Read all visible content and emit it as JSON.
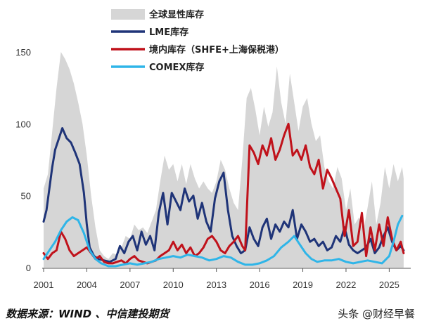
{
  "chart_data": {
    "type": "line",
    "title": "",
    "xlabel": "",
    "ylabel": "",
    "xlim": [
      2001,
      2026.3
    ],
    "ylim": [
      0,
      150
    ],
    "yticks": [
      "0",
      "50",
      "100",
      "150"
    ],
    "xticks": [
      "2001",
      "2004",
      "2007",
      "2010",
      "2013",
      "2016",
      "2019",
      "2022",
      "2025"
    ],
    "legend_position": "top-center",
    "grid": false,
    "series": [
      {
        "name": "全球显性库存",
        "style": "area",
        "color": "#d6d6d6",
        "points": [
          [
            2001.0,
            55
          ],
          [
            2001.3,
            65
          ],
          [
            2001.6,
            95
          ],
          [
            2001.9,
            125
          ],
          [
            2002.2,
            150
          ],
          [
            2002.5,
            145
          ],
          [
            2002.8,
            138
          ],
          [
            2003.1,
            128
          ],
          [
            2003.4,
            115
          ],
          [
            2003.7,
            100
          ],
          [
            2004.0,
            78
          ],
          [
            2004.3,
            50
          ],
          [
            2004.6,
            28
          ],
          [
            2004.9,
            12
          ],
          [
            2005.2,
            8
          ],
          [
            2005.5,
            6
          ],
          [
            2005.8,
            10
          ],
          [
            2006.1,
            9
          ],
          [
            2006.4,
            14
          ],
          [
            2006.7,
            22
          ],
          [
            2007.0,
            20
          ],
          [
            2007.3,
            30
          ],
          [
            2007.6,
            26
          ],
          [
            2007.9,
            28
          ],
          [
            2008.2,
            24
          ],
          [
            2008.5,
            32
          ],
          [
            2008.8,
            40
          ],
          [
            2009.1,
            60
          ],
          [
            2009.4,
            78
          ],
          [
            2009.7,
            68
          ],
          [
            2010.0,
            72
          ],
          [
            2010.3,
            60
          ],
          [
            2010.6,
            72
          ],
          [
            2010.9,
            58
          ],
          [
            2011.2,
            72
          ],
          [
            2011.5,
            62
          ],
          [
            2011.8,
            55
          ],
          [
            2012.1,
            60
          ],
          [
            2012.4,
            55
          ],
          [
            2012.7,
            52
          ],
          [
            2013.0,
            60
          ],
          [
            2013.3,
            75
          ],
          [
            2013.6,
            68
          ],
          [
            2013.9,
            55
          ],
          [
            2014.2,
            45
          ],
          [
            2014.5,
            40
          ],
          [
            2014.8,
            75
          ],
          [
            2015.1,
            118
          ],
          [
            2015.4,
            125
          ],
          [
            2015.7,
            110
          ],
          [
            2016.0,
            92
          ],
          [
            2016.3,
            112
          ],
          [
            2016.6,
            98
          ],
          [
            2016.9,
            108
          ],
          [
            2017.2,
            140
          ],
          [
            2017.5,
            115
          ],
          [
            2017.8,
            100
          ],
          [
            2018.1,
            135
          ],
          [
            2018.4,
            115
          ],
          [
            2018.7,
            95
          ],
          [
            2019.0,
            112
          ],
          [
            2019.3,
            118
          ],
          [
            2019.6,
            100
          ],
          [
            2019.9,
            88
          ],
          [
            2020.2,
            92
          ],
          [
            2020.5,
            70
          ],
          [
            2020.8,
            60
          ],
          [
            2021.1,
            55
          ],
          [
            2021.4,
            70
          ],
          [
            2021.7,
            62
          ],
          [
            2022.0,
            40
          ],
          [
            2022.3,
            55
          ],
          [
            2022.6,
            30
          ],
          [
            2022.9,
            35
          ],
          [
            2023.2,
            25
          ],
          [
            2023.5,
            42
          ],
          [
            2023.8,
            60
          ],
          [
            2024.1,
            30
          ],
          [
            2024.4,
            45
          ],
          [
            2024.7,
            70
          ],
          [
            2025.0,
            55
          ],
          [
            2025.3,
            72
          ],
          [
            2025.6,
            60
          ],
          [
            2025.9,
            70
          ],
          [
            2026.0,
            62
          ]
        ]
      },
      {
        "name": "LME库存",
        "style": "line",
        "color": "#1f3478",
        "points": [
          [
            2001.0,
            32
          ],
          [
            2001.2,
            40
          ],
          [
            2001.4,
            55
          ],
          [
            2001.6,
            70
          ],
          [
            2001.8,
            82
          ],
          [
            2002.0,
            88
          ],
          [
            2002.3,
            97
          ],
          [
            2002.6,
            90
          ],
          [
            2002.9,
            87
          ],
          [
            2003.2,
            80
          ],
          [
            2003.5,
            72
          ],
          [
            2003.8,
            52
          ],
          [
            2004.0,
            30
          ],
          [
            2004.2,
            14
          ],
          [
            2004.5,
            8
          ],
          [
            2004.8,
            6
          ],
          [
            2005.2,
            5
          ],
          [
            2005.6,
            4
          ],
          [
            2006.0,
            6
          ],
          [
            2006.3,
            15
          ],
          [
            2006.6,
            10
          ],
          [
            2006.9,
            18
          ],
          [
            2007.2,
            22
          ],
          [
            2007.5,
            12
          ],
          [
            2007.8,
            25
          ],
          [
            2008.1,
            16
          ],
          [
            2008.4,
            22
          ],
          [
            2008.7,
            12
          ],
          [
            2009.0,
            38
          ],
          [
            2009.3,
            52
          ],
          [
            2009.6,
            30
          ],
          [
            2009.9,
            52
          ],
          [
            2010.2,
            46
          ],
          [
            2010.5,
            40
          ],
          [
            2010.8,
            55
          ],
          [
            2011.1,
            46
          ],
          [
            2011.4,
            50
          ],
          [
            2011.7,
            34
          ],
          [
            2012.0,
            45
          ],
          [
            2012.3,
            32
          ],
          [
            2012.6,
            25
          ],
          [
            2012.9,
            48
          ],
          [
            2013.2,
            60
          ],
          [
            2013.5,
            66
          ],
          [
            2013.8,
            40
          ],
          [
            2014.1,
            22
          ],
          [
            2014.4,
            15
          ],
          [
            2014.7,
            10
          ],
          [
            2015.0,
            12
          ],
          [
            2015.3,
            28
          ],
          [
            2015.6,
            20
          ],
          [
            2015.9,
            15
          ],
          [
            2016.2,
            28
          ],
          [
            2016.5,
            34
          ],
          [
            2016.8,
            20
          ],
          [
            2017.1,
            30
          ],
          [
            2017.4,
            25
          ],
          [
            2017.7,
            32
          ],
          [
            2018.0,
            28
          ],
          [
            2018.3,
            40
          ],
          [
            2018.6,
            20
          ],
          [
            2018.9,
            30
          ],
          [
            2019.2,
            25
          ],
          [
            2019.5,
            18
          ],
          [
            2019.8,
            20
          ],
          [
            2020.1,
            15
          ],
          [
            2020.4,
            18
          ],
          [
            2020.7,
            12
          ],
          [
            2021.0,
            14
          ],
          [
            2021.3,
            22
          ],
          [
            2021.6,
            18
          ],
          [
            2021.9,
            28
          ],
          [
            2022.2,
            16
          ],
          [
            2022.5,
            12
          ],
          [
            2022.8,
            10
          ],
          [
            2023.1,
            12
          ],
          [
            2023.4,
            14
          ],
          [
            2023.7,
            20
          ],
          [
            2024.0,
            10
          ],
          [
            2024.3,
            14
          ],
          [
            2024.6,
            22
          ],
          [
            2024.9,
            28
          ],
          [
            2025.2,
            18
          ],
          [
            2025.5,
            12
          ],
          [
            2025.8,
            15
          ],
          [
            2026.0,
            12
          ]
        ]
      },
      {
        "name": "境内库存（SHFE+上海保税港）",
        "style": "line",
        "color": "#c0121b",
        "points": [
          [
            2001.0,
            10
          ],
          [
            2001.3,
            6
          ],
          [
            2001.6,
            10
          ],
          [
            2001.9,
            12
          ],
          [
            2002.2,
            25
          ],
          [
            2002.5,
            20
          ],
          [
            2002.8,
            12
          ],
          [
            2003.1,
            8
          ],
          [
            2003.4,
            10
          ],
          [
            2003.7,
            12
          ],
          [
            2004.0,
            14
          ],
          [
            2004.3,
            10
          ],
          [
            2004.6,
            6
          ],
          [
            2004.9,
            8
          ],
          [
            2005.2,
            4
          ],
          [
            2005.5,
            3
          ],
          [
            2005.8,
            3
          ],
          [
            2006.1,
            4
          ],
          [
            2006.4,
            5
          ],
          [
            2006.7,
            3
          ],
          [
            2007.0,
            6
          ],
          [
            2007.3,
            8
          ],
          [
            2007.6,
            5
          ],
          [
            2007.9,
            4
          ],
          [
            2008.2,
            3
          ],
          [
            2008.5,
            4
          ],
          [
            2008.8,
            5
          ],
          [
            2009.1,
            8
          ],
          [
            2009.4,
            10
          ],
          [
            2009.7,
            12
          ],
          [
            2010.0,
            18
          ],
          [
            2010.3,
            12
          ],
          [
            2010.6,
            16
          ],
          [
            2010.9,
            10
          ],
          [
            2011.2,
            14
          ],
          [
            2011.5,
            8
          ],
          [
            2011.8,
            10
          ],
          [
            2012.1,
            14
          ],
          [
            2012.4,
            20
          ],
          [
            2012.7,
            22
          ],
          [
            2013.0,
            18
          ],
          [
            2013.3,
            12
          ],
          [
            2013.6,
            10
          ],
          [
            2013.9,
            15
          ],
          [
            2014.2,
            18
          ],
          [
            2014.5,
            22
          ],
          [
            2014.8,
            15
          ],
          [
            2015.0,
            12
          ],
          [
            2015.3,
            85
          ],
          [
            2015.6,
            80
          ],
          [
            2015.9,
            72
          ],
          [
            2016.2,
            85
          ],
          [
            2016.5,
            78
          ],
          [
            2016.8,
            90
          ],
          [
            2017.1,
            75
          ],
          [
            2017.4,
            82
          ],
          [
            2017.7,
            92
          ],
          [
            2018.0,
            100
          ],
          [
            2018.3,
            78
          ],
          [
            2018.6,
            82
          ],
          [
            2018.9,
            75
          ],
          [
            2019.2,
            85
          ],
          [
            2019.5,
            70
          ],
          [
            2019.8,
            65
          ],
          [
            2020.1,
            75
          ],
          [
            2020.4,
            55
          ],
          [
            2020.7,
            68
          ],
          [
            2021.0,
            62
          ],
          [
            2021.3,
            55
          ],
          [
            2021.6,
            48
          ],
          [
            2021.9,
            22
          ],
          [
            2022.2,
            40
          ],
          [
            2022.5,
            15
          ],
          [
            2022.8,
            18
          ],
          [
            2023.1,
            38
          ],
          [
            2023.4,
            8
          ],
          [
            2023.7,
            28
          ],
          [
            2024.0,
            12
          ],
          [
            2024.3,
            30
          ],
          [
            2024.6,
            15
          ],
          [
            2024.9,
            35
          ],
          [
            2025.2,
            20
          ],
          [
            2025.5,
            12
          ],
          [
            2025.8,
            18
          ],
          [
            2026.0,
            10
          ]
        ]
      },
      {
        "name": "COMEX库存",
        "style": "line",
        "color": "#2fb5e8",
        "points": [
          [
            2001.0,
            6
          ],
          [
            2001.4,
            12
          ],
          [
            2001.8,
            18
          ],
          [
            2002.2,
            26
          ],
          [
            2002.6,
            32
          ],
          [
            2003.0,
            35
          ],
          [
            2003.4,
            33
          ],
          [
            2003.8,
            24
          ],
          [
            2004.2,
            12
          ],
          [
            2004.6,
            6
          ],
          [
            2005.0,
            3
          ],
          [
            2005.5,
            1
          ],
          [
            2006.0,
            1
          ],
          [
            2006.5,
            2
          ],
          [
            2007.0,
            3
          ],
          [
            2007.5,
            2
          ],
          [
            2008.0,
            3
          ],
          [
            2008.5,
            4
          ],
          [
            2009.0,
            6
          ],
          [
            2009.5,
            7
          ],
          [
            2010.0,
            8
          ],
          [
            2010.5,
            7
          ],
          [
            2011.0,
            9
          ],
          [
            2011.5,
            8
          ],
          [
            2012.0,
            7
          ],
          [
            2012.5,
            5
          ],
          [
            2013.0,
            6
          ],
          [
            2013.5,
            8
          ],
          [
            2014.0,
            7
          ],
          [
            2014.5,
            4
          ],
          [
            2015.0,
            2
          ],
          [
            2015.5,
            2
          ],
          [
            2016.0,
            3
          ],
          [
            2016.5,
            5
          ],
          [
            2017.0,
            8
          ],
          [
            2017.5,
            14
          ],
          [
            2018.0,
            18
          ],
          [
            2018.4,
            22
          ],
          [
            2018.8,
            16
          ],
          [
            2019.2,
            10
          ],
          [
            2019.6,
            6
          ],
          [
            2020.0,
            4
          ],
          [
            2020.5,
            5
          ],
          [
            2021.0,
            5
          ],
          [
            2021.5,
            6
          ],
          [
            2022.0,
            4
          ],
          [
            2022.5,
            3
          ],
          [
            2023.0,
            4
          ],
          [
            2023.5,
            5
          ],
          [
            2024.0,
            4
          ],
          [
            2024.5,
            3
          ],
          [
            2025.0,
            8
          ],
          [
            2025.3,
            18
          ],
          [
            2025.6,
            30
          ],
          [
            2025.9,
            36
          ]
        ]
      }
    ]
  },
  "footer": {
    "source": "数据来源：WIND 、中信建投期货",
    "watermark": "头条 @财经早餐"
  }
}
